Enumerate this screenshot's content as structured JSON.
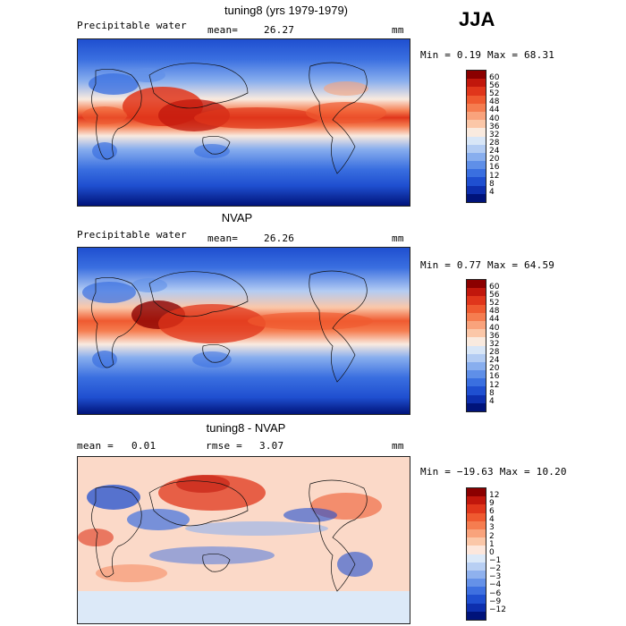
{
  "season": "JJA",
  "panels": [
    {
      "title": "tuning8 (yrs 1979-1979)",
      "left_label": "Precipitable water",
      "stat_label": "mean=",
      "stat_value": "26.27",
      "stat2_label": "",
      "stat2_value": "",
      "units": "mm",
      "minmax": "Min =   0.19 Max =  68.31",
      "colorbar_ticks": [
        "60",
        "56",
        "52",
        "48",
        "44",
        "40",
        "36",
        "32",
        "28",
        "24",
        "20",
        "16",
        "12",
        "8",
        "4"
      ]
    },
    {
      "title": "NVAP",
      "left_label": "Precipitable water",
      "stat_label": "mean=",
      "stat_value": "26.26",
      "stat2_label": "",
      "stat2_value": "",
      "units": "mm",
      "minmax": "Min =   0.77 Max =  64.59",
      "colorbar_ticks": [
        "60",
        "56",
        "52",
        "48",
        "44",
        "40",
        "36",
        "32",
        "28",
        "24",
        "20",
        "16",
        "12",
        "8",
        "4"
      ]
    },
    {
      "title": "tuning8 - NVAP",
      "left_label": "mean =",
      "left_value": "0.01",
      "stat_label": "rmse =",
      "stat_value": "3.07",
      "units": "mm",
      "minmax": "Min = −19.63 Max =  10.20",
      "colorbar_ticks": [
        "12",
        "9",
        "6",
        "4",
        "3",
        "2",
        "1",
        "0",
        "−1",
        "−2",
        "−3",
        "−4",
        "−6",
        "−9",
        "−12"
      ]
    }
  ],
  "colors": {
    "abs_scale": [
      "#8b0000",
      "#c1170c",
      "#e0361b",
      "#ef5a30",
      "#f57d50",
      "#f9a37c",
      "#fbc7a8",
      "#f9eadf",
      "#d8e6f7",
      "#b3ccf3",
      "#88aeee",
      "#5f8fe8",
      "#3a6fe0",
      "#1f4fd0",
      "#0d2fae",
      "#00137a"
    ],
    "diff_scale": [
      "#8b0000",
      "#c1170c",
      "#e0361b",
      "#ef5a30",
      "#f57d50",
      "#f9a37c",
      "#fbc7a8",
      "#fde7dc",
      "#dce9f8",
      "#b8cff3",
      "#8fb1ee",
      "#6591e8",
      "#3e70e0",
      "#1f4fd0",
      "#0d2fae",
      "#00137a"
    ]
  }
}
